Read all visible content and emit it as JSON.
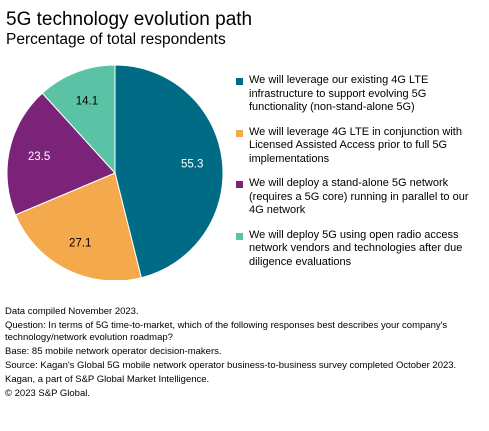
{
  "chart_data": {
    "type": "pie",
    "title": "5G technology evolution path",
    "subtitle": "Percentage of total respondents",
    "slices": [
      {
        "label": "We will leverage our existing 4G LTE infrastructure to support evolving 5G functionality (non-stand-alone 5G)",
        "value": 55.3,
        "display": "55.3",
        "color": "#006b84",
        "label_color": "#ffffff"
      },
      {
        "label": "We will leverage 4G LTE in conjunction with Licensed Assisted Access prior to full 5G implementations",
        "value": 27.1,
        "display": "27.1",
        "color": "#f4a94d",
        "label_color": "#000000"
      },
      {
        "label": "We will deploy a stand-alone 5G network (requires a 5G core) running in parallel to our 4G network",
        "value": 23.5,
        "display": "23.5",
        "color": "#7a2378",
        "label_color": "#ffffff"
      },
      {
        "label": "We will deploy 5G using open radio access network vendors and technologies after due diligence evaluations",
        "value": 14.1,
        "display": "14.1",
        "color": "#5bc3a5",
        "label_color": "#000000"
      }
    ],
    "legend_position": "right"
  },
  "footnotes": [
    "Data compiled November 2023.",
    "Question: In terms of 5G time-to-market, which of the following responses best describes your company's technology/network evolution roadmap?",
    "Base: 85 mobile network operator decision-makers.",
    "Source: Kagan's Global 5G mobile network operator business-to-business survey completed October 2023.",
    "Kagan, a part of S&P Global Market Intelligence.",
    "© 2023 S&P Global."
  ]
}
